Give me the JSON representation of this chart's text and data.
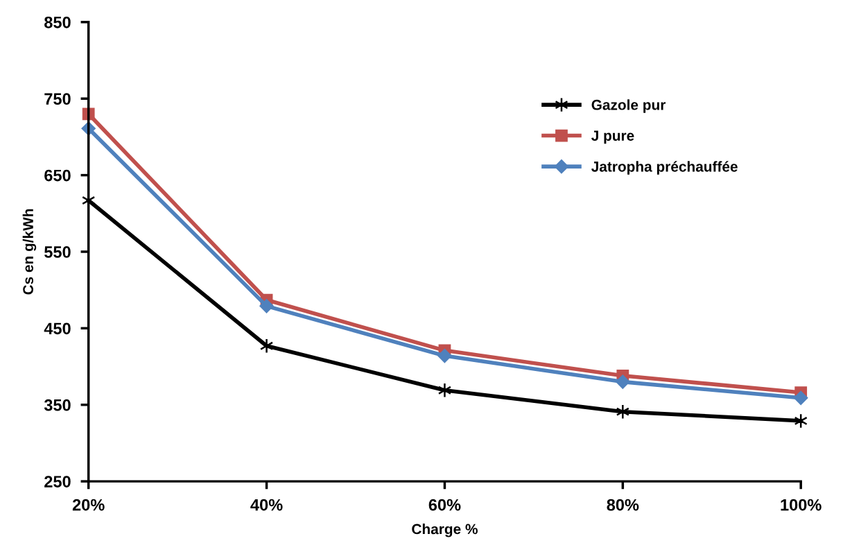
{
  "chart_data": {
    "type": "line",
    "xlabel": "Charge %",
    "ylabel": "Cs en g/kWh",
    "categories": [
      "20%",
      "40%",
      "60%",
      "80%",
      "100%"
    ],
    "series": [
      {
        "name": "Gazole pur",
        "color": "#000000",
        "marker": "cross",
        "values": [
          617,
          427,
          369,
          341,
          329
        ]
      },
      {
        "name": "J pure",
        "color": "#c0504d",
        "marker": "square",
        "values": [
          730,
          487,
          421,
          388,
          366
        ]
      },
      {
        "name": "Jatropha préchauffée",
        "color": "#4f81bd",
        "marker": "diamond",
        "values": [
          711,
          479,
          414,
          380,
          359
        ]
      }
    ],
    "ylim": [
      250,
      850
    ],
    "yticks": [
      250,
      350,
      450,
      550,
      650,
      750,
      850
    ],
    "grid": false,
    "legend": "right"
  }
}
